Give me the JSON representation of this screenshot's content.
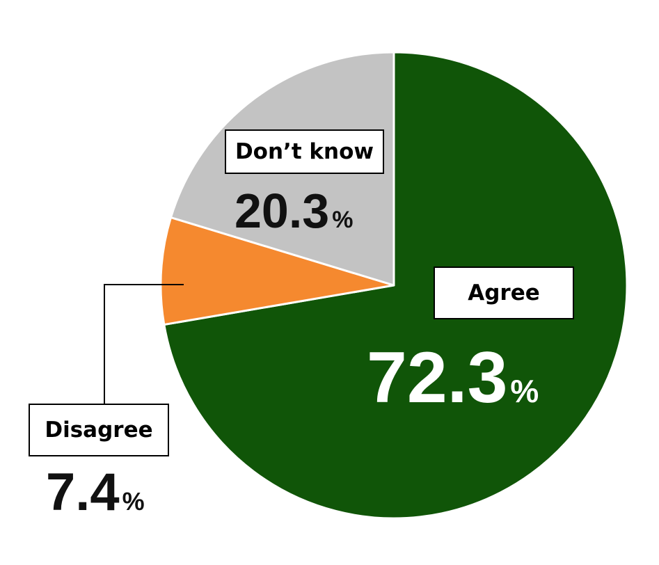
{
  "chart_data": {
    "type": "pie",
    "categories": [
      "Agree",
      "Disagree",
      "Don’t know"
    ],
    "values": [
      72.3,
      7.4,
      20.3
    ],
    "unit": "%",
    "colors": [
      "#105508",
      "#f5892f",
      "#c3c3c3"
    ],
    "start": "12 o'clock",
    "direction": "clockwise",
    "legend": "none (direct labels)"
  },
  "labels": {
    "agree": {
      "name": "Agree",
      "value": "72.3",
      "unit": "%"
    },
    "disagree": {
      "name": "Disagree",
      "value": "7.4",
      "unit": "%"
    },
    "dont_know": {
      "name": "Don’t know",
      "value": "20.3",
      "unit": "%"
    }
  }
}
